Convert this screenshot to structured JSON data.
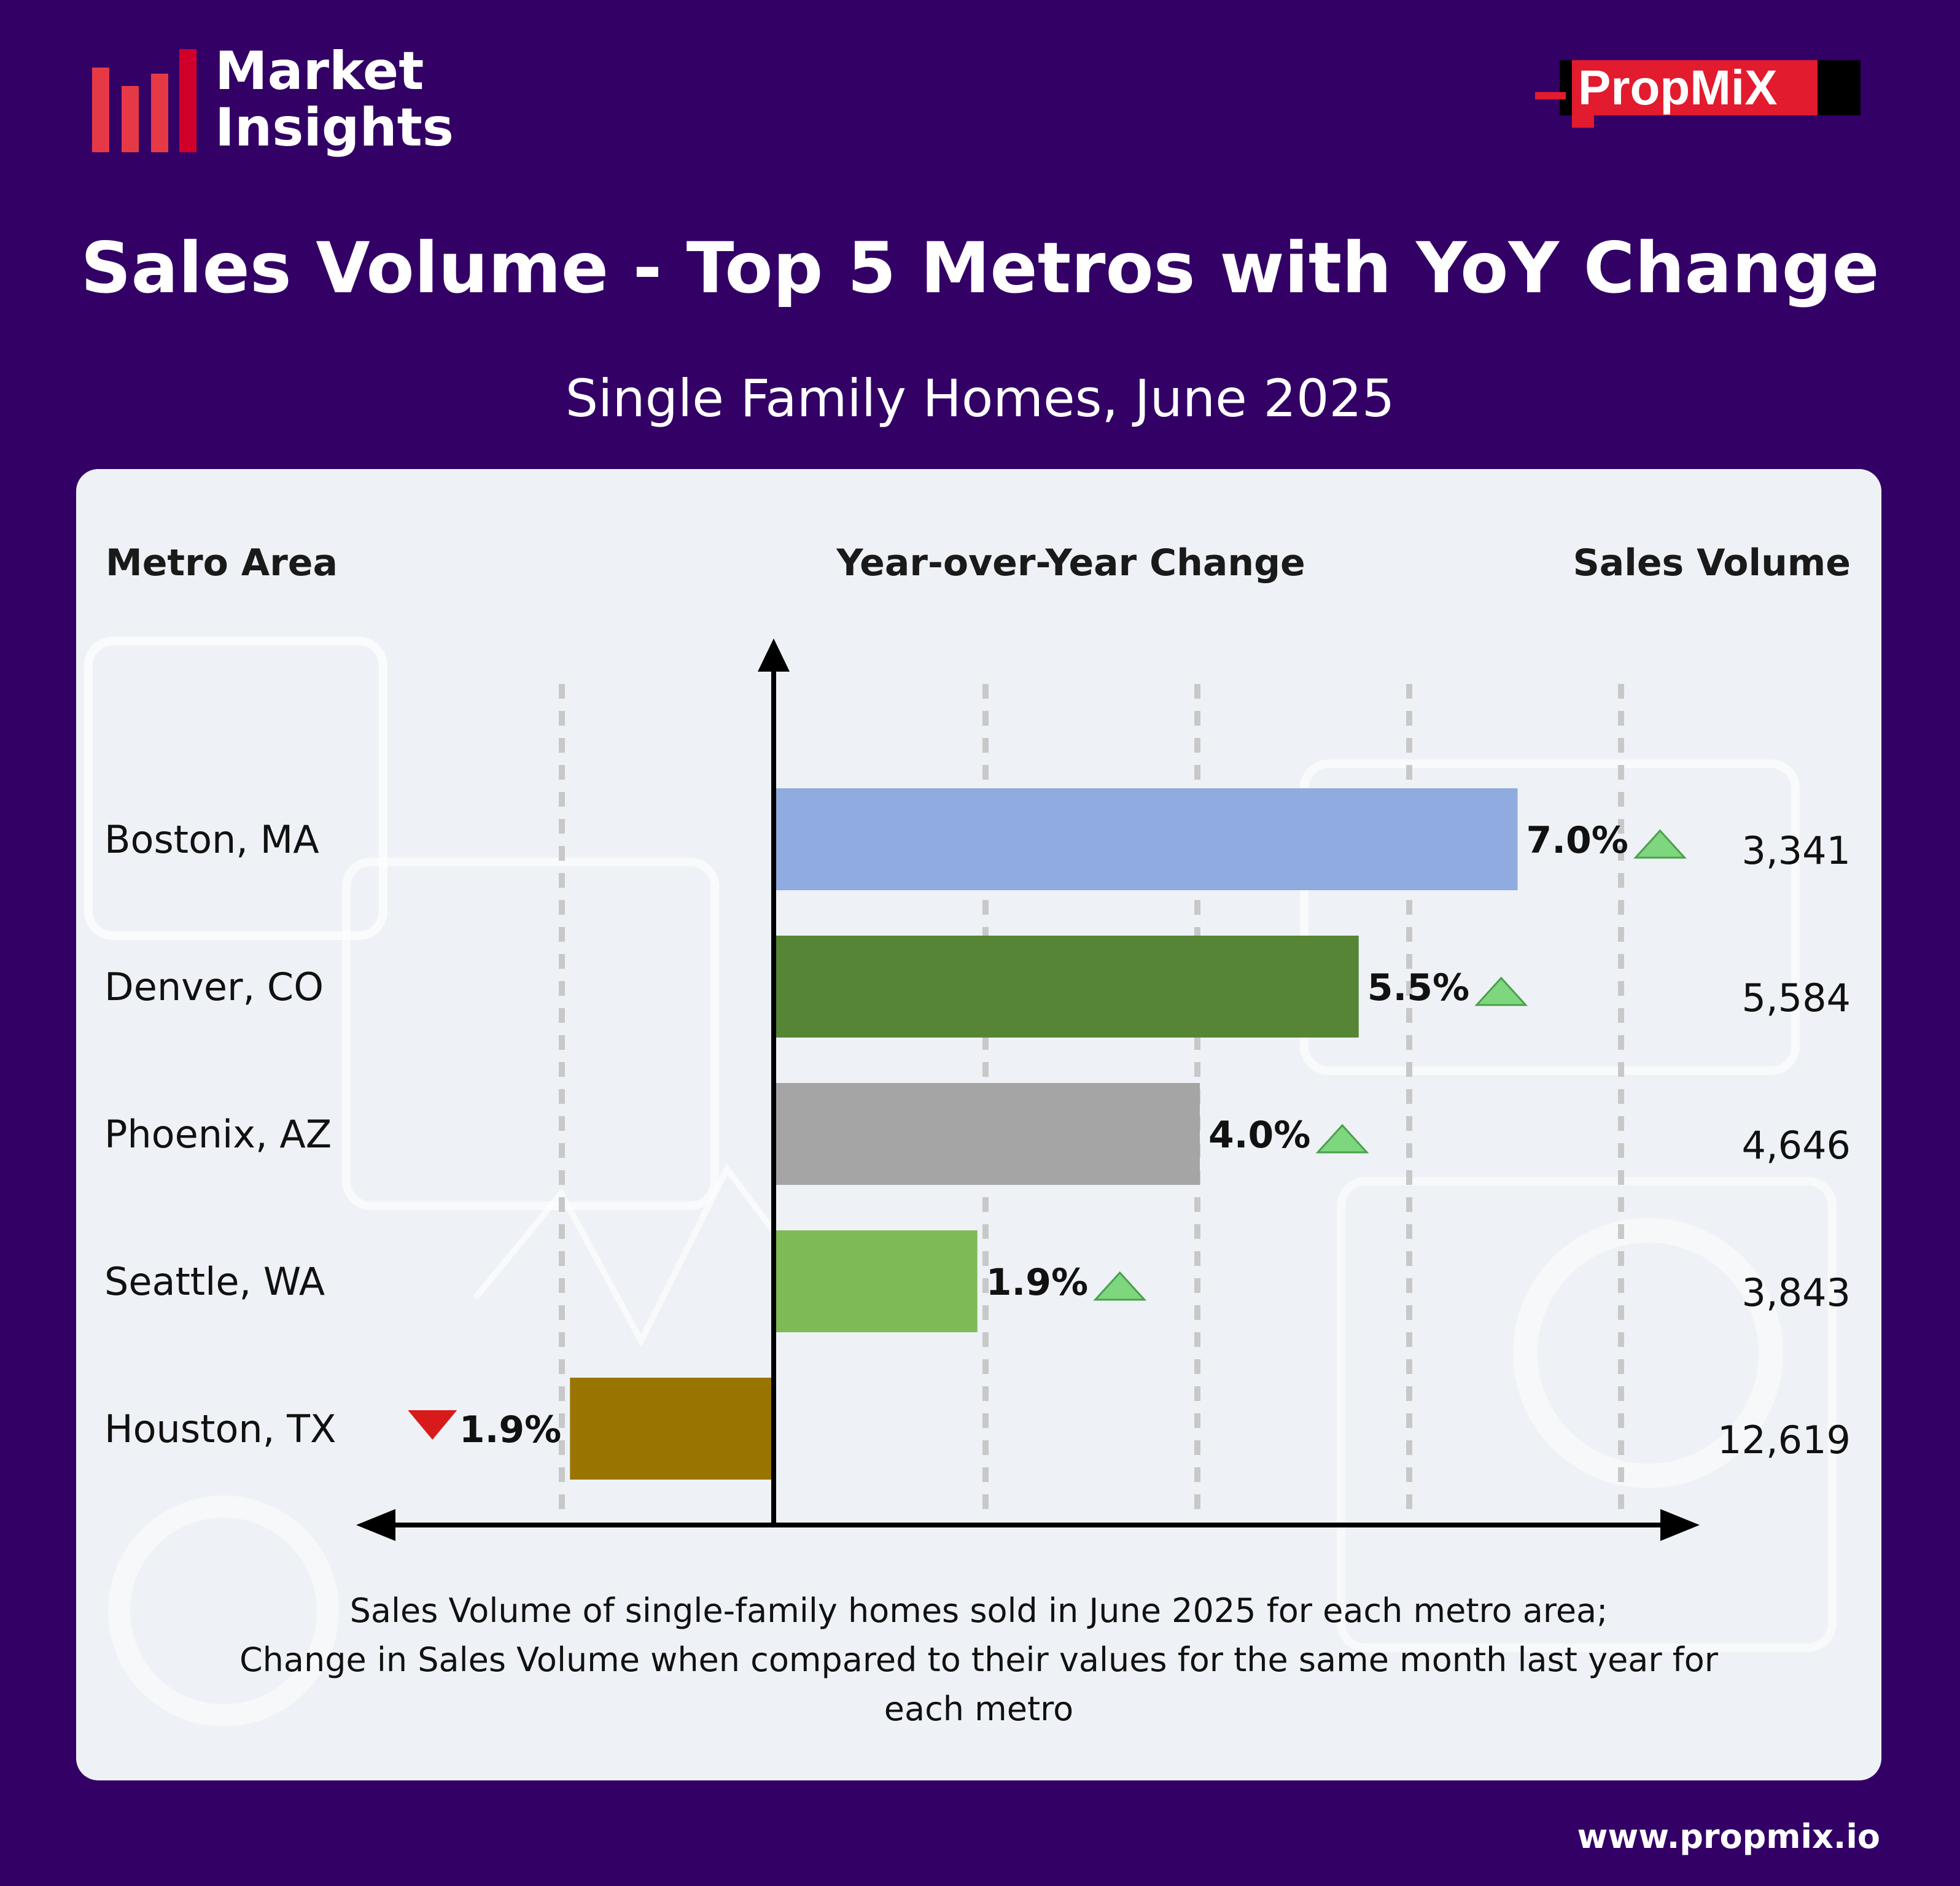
{
  "header": {
    "brand_line1": "Market",
    "brand_line2": "Insights",
    "partner_logo_text": "PropMiX"
  },
  "title": "Sales Volume - Top 5 Metros with YoY Change",
  "subtitle": "Single Family Homes, June 2025",
  "columns": {
    "metro": "Metro Area",
    "yoy": "Year-over-Year Change",
    "sales": "Sales Volume"
  },
  "chart_data": {
    "type": "bar",
    "orientation": "horizontal",
    "categories": [
      "Boston, MA",
      "Denver, CO",
      "Phoenix, AZ",
      "Seattle, WA",
      "Houston, TX"
    ],
    "values": [
      7.0,
      5.5,
      4.0,
      1.9,
      -1.9
    ],
    "value_labels": [
      "7.0%",
      "5.5%",
      "4.0%",
      "1.9%",
      "1.9%"
    ],
    "sales_volume": [
      "3,341",
      "5,584",
      "4,646",
      "3,843",
      "12,619"
    ],
    "colors": [
      "#8fabdf",
      "#568535",
      "#a5a5a5",
      "#7fbb55",
      "#9a7400"
    ],
    "up_color": "#7ed67e",
    "down_color": "#d91a1a",
    "grid": "dashed-vertical",
    "legend": "none"
  },
  "caption_lines": [
    "Sales Volume of single-family homes sold in June 2025 for each metro area;",
    "Change in Sales Volume when compared to their values for the same month last year for",
    "each metro"
  ],
  "footer": {
    "website": "www.propmix.io"
  }
}
